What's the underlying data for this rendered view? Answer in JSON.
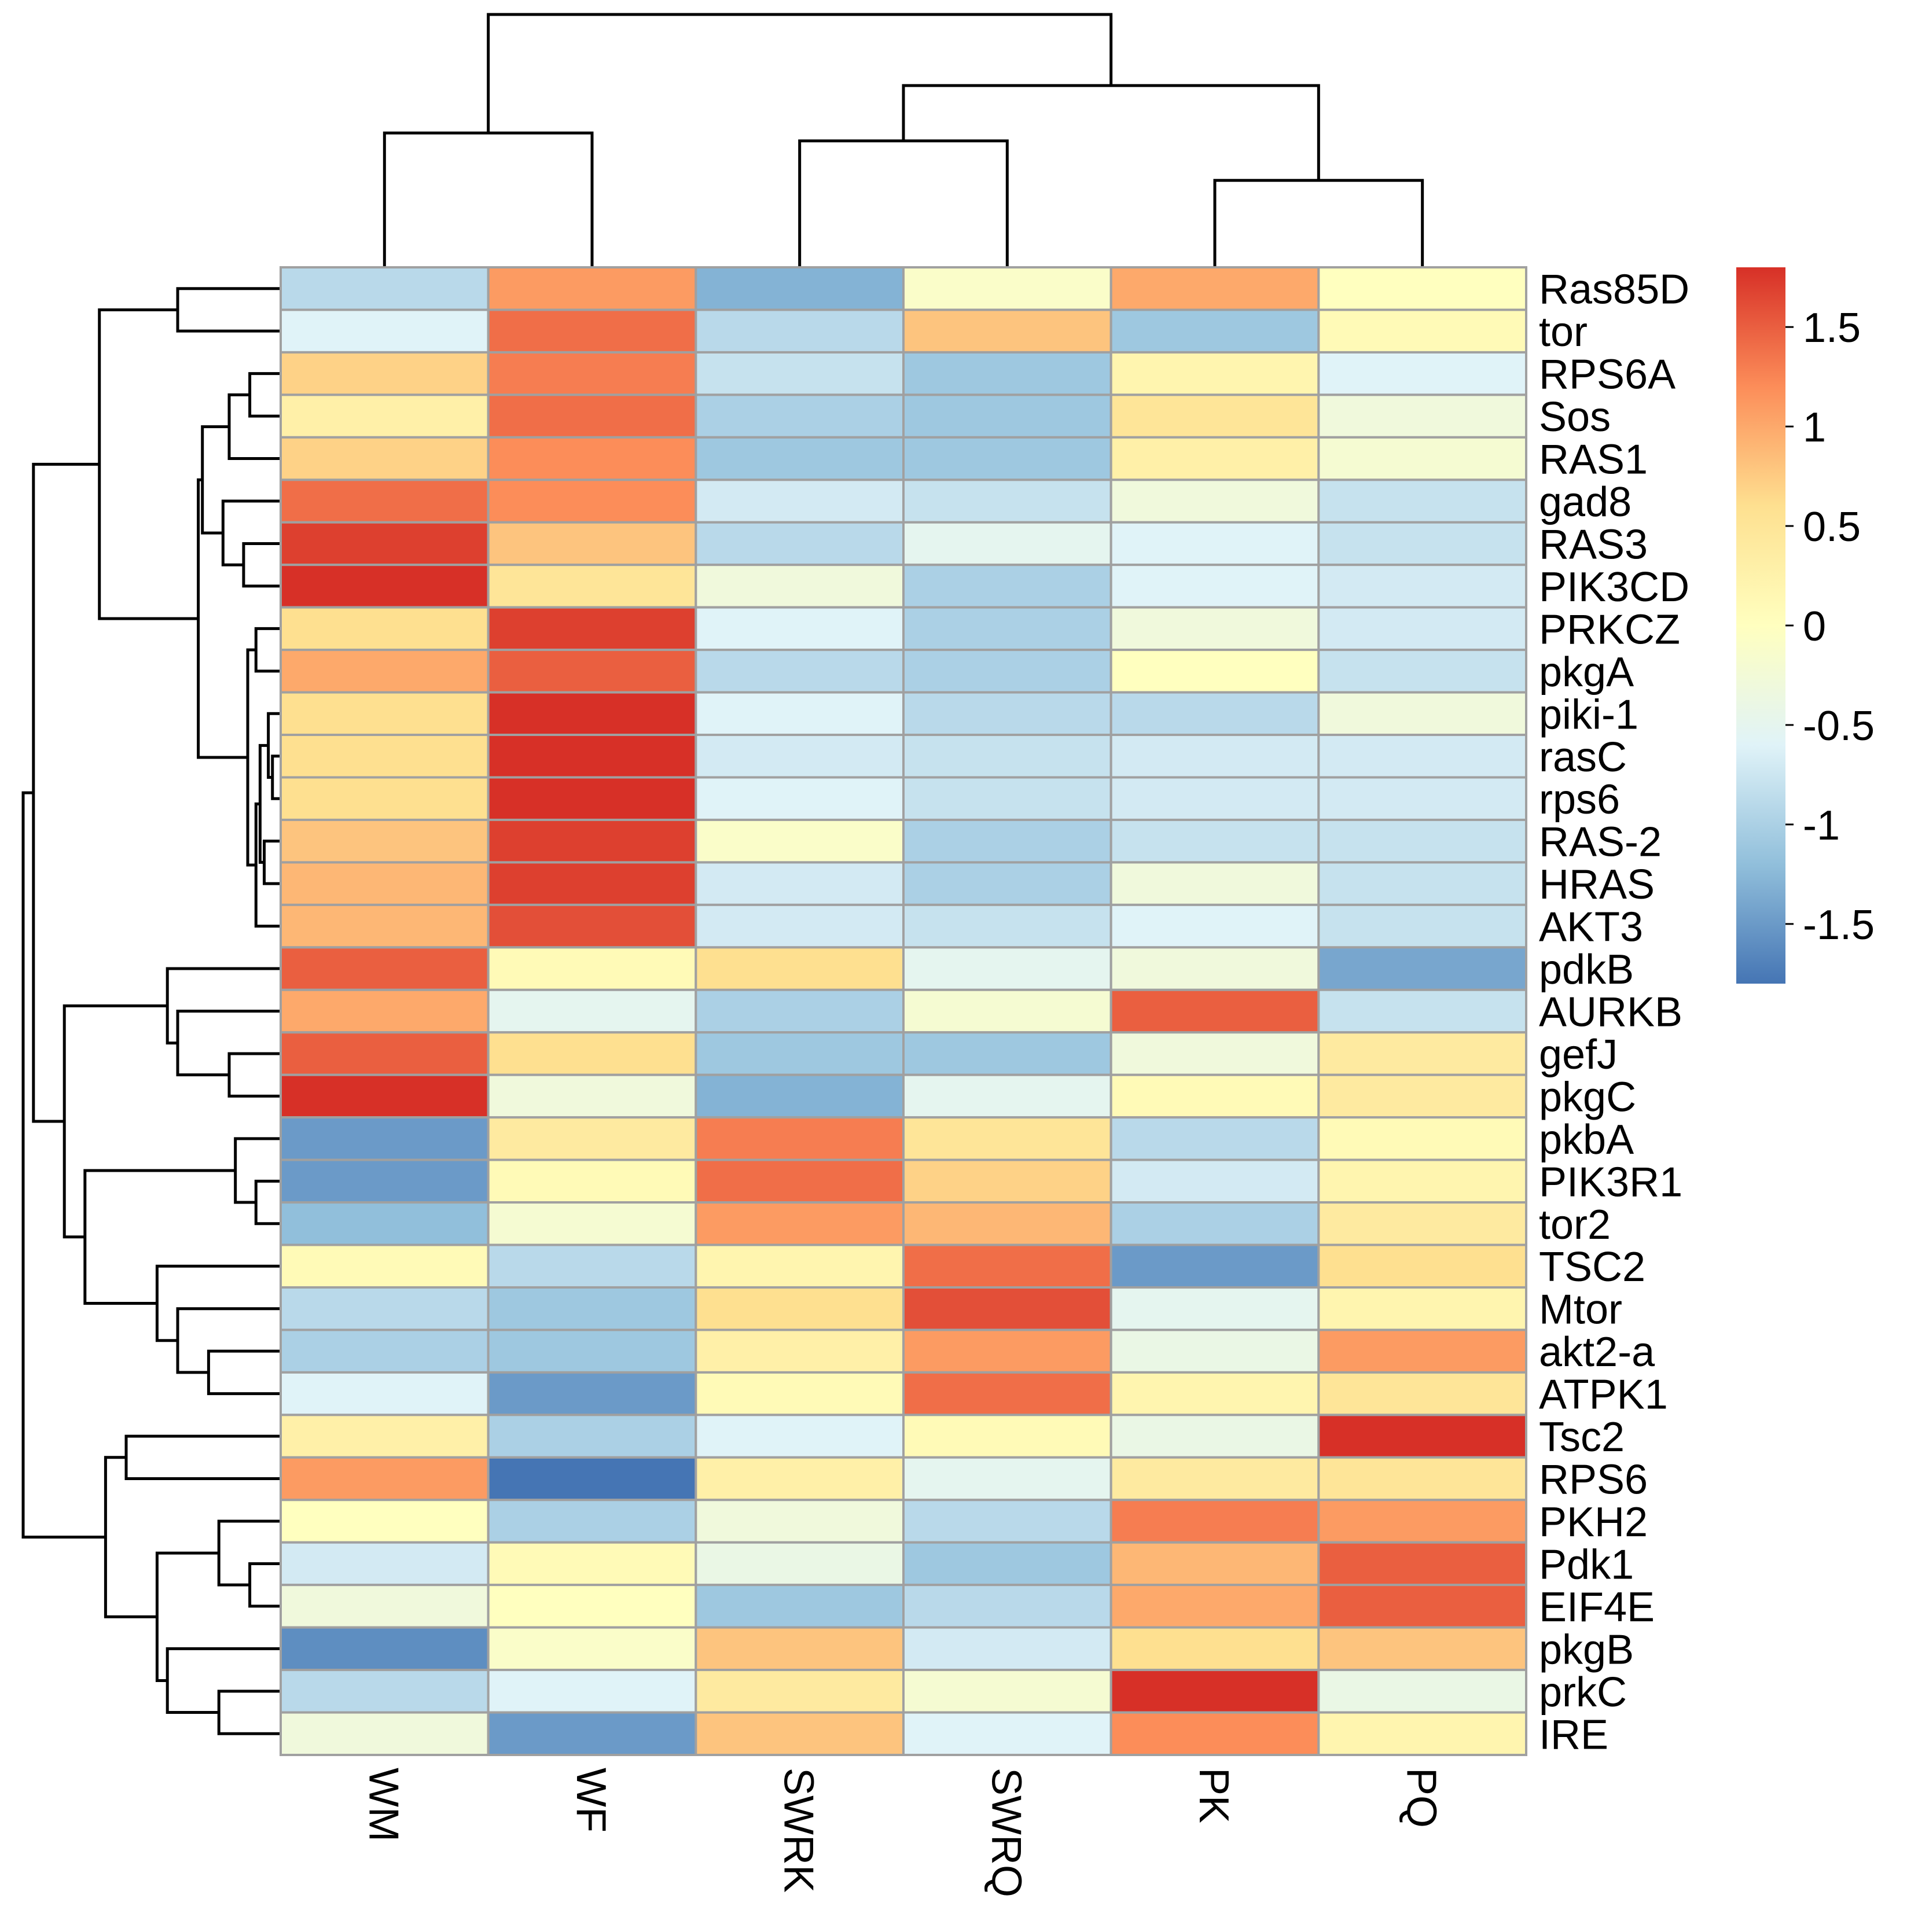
{
  "chart_data": {
    "type": "heatmap",
    "title": "",
    "columns": [
      "WM",
      "WF",
      "SWRK",
      "SWRQ",
      "PK",
      "PQ"
    ],
    "rows": [
      "Ras85D",
      "tor",
      "RPS6A",
      "Sos",
      "RAS1",
      "gad8",
      "RAS3",
      "PIK3CD",
      "PRKCZ",
      "pkgA",
      "piki-1",
      "rasC",
      "rps6",
      "RAS-2",
      "HRAS",
      "AKT3",
      "pdkB",
      "AURKB",
      "gefJ",
      "pkgC",
      "pkbA",
      "PIK3R1",
      "tor2",
      "TSC2",
      "Mtor",
      "akt2-a",
      "ATPK1",
      "Tsc2",
      "RPS6",
      "PKH2",
      "Pdk1",
      "EIF4E",
      "pkgB",
      "prkC",
      "IRE"
    ],
    "values": [
      [
        -0.9,
        1.1,
        -1.3,
        -0.1,
        1.0,
        0.0
      ],
      [
        -0.6,
        1.4,
        -0.9,
        0.8,
        -1.1,
        0.1
      ],
      [
        0.7,
        1.3,
        -0.8,
        -1.1,
        0.2,
        -0.6
      ],
      [
        0.3,
        1.4,
        -1.0,
        -1.1,
        0.5,
        -0.3
      ],
      [
        0.7,
        1.2,
        -1.1,
        -1.1,
        0.3,
        -0.2
      ],
      [
        1.4,
        1.2,
        -0.7,
        -0.8,
        -0.3,
        -0.8
      ],
      [
        1.7,
        0.8,
        -0.9,
        -0.5,
        -0.6,
        -0.8
      ],
      [
        1.8,
        0.5,
        -0.3,
        -1.0,
        -0.6,
        -0.7
      ],
      [
        0.6,
        1.7,
        -0.6,
        -1.0,
        -0.3,
        -0.7
      ],
      [
        1.0,
        1.5,
        -0.9,
        -1.0,
        0.0,
        -0.8
      ],
      [
        0.6,
        1.8,
        -0.6,
        -0.9,
        -0.9,
        -0.3
      ],
      [
        0.6,
        1.8,
        -0.7,
        -0.8,
        -0.7,
        -0.7
      ],
      [
        0.6,
        1.8,
        -0.6,
        -0.8,
        -0.7,
        -0.7
      ],
      [
        0.8,
        1.7,
        -0.1,
        -1.0,
        -0.8,
        -0.8
      ],
      [
        0.9,
        1.7,
        -0.7,
        -1.0,
        -0.3,
        -0.8
      ],
      [
        0.9,
        1.6,
        -0.7,
        -0.8,
        -0.6,
        -0.8
      ],
      [
        1.5,
        0.1,
        0.6,
        -0.5,
        -0.3,
        -1.4
      ],
      [
        1.0,
        -0.5,
        -1.0,
        -0.2,
        1.5,
        -0.8
      ],
      [
        1.5,
        0.6,
        -1.1,
        -1.1,
        -0.3,
        0.4
      ],
      [
        1.8,
        -0.3,
        -1.3,
        -0.5,
        0.1,
        0.4
      ],
      [
        -1.5,
        0.4,
        1.3,
        0.5,
        -0.9,
        0.1
      ],
      [
        -1.5,
        0.1,
        1.4,
        0.7,
        -0.7,
        0.2
      ],
      [
        -1.2,
        -0.2,
        1.1,
        0.9,
        -1.0,
        0.4
      ],
      [
        0.1,
        -0.9,
        0.2,
        1.4,
        -1.5,
        0.6
      ],
      [
        -0.9,
        -1.1,
        0.6,
        1.6,
        -0.5,
        0.2
      ],
      [
        -1.0,
        -1.1,
        0.3,
        1.1,
        -0.4,
        1.1
      ],
      [
        -0.6,
        -1.5,
        0.1,
        1.4,
        0.2,
        0.5
      ],
      [
        0.3,
        -1.0,
        -0.6,
        0.1,
        -0.4,
        1.8
      ],
      [
        1.1,
        -1.8,
        0.3,
        -0.5,
        0.4,
        0.5
      ],
      [
        0.0,
        -1.0,
        -0.3,
        -0.9,
        1.3,
        1.1
      ],
      [
        -0.7,
        0.1,
        -0.4,
        -1.1,
        0.9,
        1.5
      ],
      [
        -0.3,
        0.0,
        -1.1,
        -0.9,
        1.0,
        1.5
      ],
      [
        -1.6,
        -0.1,
        0.8,
        -0.7,
        0.6,
        0.8
      ],
      [
        -0.9,
        -0.6,
        0.4,
        -0.2,
        1.8,
        -0.4
      ],
      [
        -0.3,
        -1.5,
        0.8,
        -0.6,
        1.2,
        0.2
      ]
    ],
    "color_scale": {
      "min": -1.8,
      "max": 1.8,
      "colors": [
        "#4575b4",
        "#91bfdb",
        "#e0f3f8",
        "#ffffbf",
        "#fee090",
        "#fc8d59",
        "#d73027"
      ],
      "ticks": [
        1.5,
        1,
        0.5,
        0,
        -0.5,
        -1,
        -1.5
      ],
      "tick_labels": [
        "1.5",
        "1",
        "0.5",
        "0",
        "-0.5",
        "-1",
        "-1.5"
      ]
    },
    "col_dendrogram": [
      [
        4,
        5,
        0.55
      ],
      [
        2,
        3,
        0.8
      ],
      [
        0,
        1,
        0.85
      ],
      [
        7,
        6,
        1.15
      ],
      [
        8,
        9,
        1.6
      ]
    ],
    "row_dendrogram": [
      [
        2,
        3,
        0.15
      ],
      [
        35,
        4,
        0.25
      ],
      [
        6,
        7,
        0.18
      ],
      [
        5,
        37,
        0.28
      ],
      [
        36,
        38,
        0.38
      ],
      [
        11,
        12,
        0.04
      ],
      [
        10,
        40,
        0.06
      ],
      [
        13,
        14,
        0.08
      ],
      [
        41,
        42,
        0.1
      ],
      [
        15,
        43,
        0.12
      ],
      [
        8,
        9,
        0.12
      ],
      [
        45,
        44,
        0.16
      ],
      [
        39,
        46,
        0.4
      ],
      [
        0,
        1,
        0.5
      ],
      [
        47,
        48,
        0.88
      ],
      [
        18,
        19,
        0.25
      ],
      [
        17,
        50,
        0.5
      ],
      [
        16,
        51,
        0.55
      ],
      [
        21,
        22,
        0.12
      ],
      [
        20,
        53,
        0.22
      ],
      [
        25,
        26,
        0.35
      ],
      [
        24,
        55,
        0.5
      ],
      [
        23,
        56,
        0.6
      ],
      [
        54,
        57,
        0.95
      ],
      [
        52,
        58,
        1.05
      ],
      [
        49,
        59,
        1.2
      ],
      [
        30,
        31,
        0.15
      ],
      [
        29,
        61,
        0.3
      ],
      [
        33,
        34,
        0.3
      ],
      [
        32,
        63,
        0.55
      ],
      [
        62,
        64,
        0.6
      ],
      [
        27,
        28,
        0.75
      ],
      [
        66,
        65,
        0.85
      ],
      [
        60,
        67,
        1.25
      ]
    ]
  }
}
